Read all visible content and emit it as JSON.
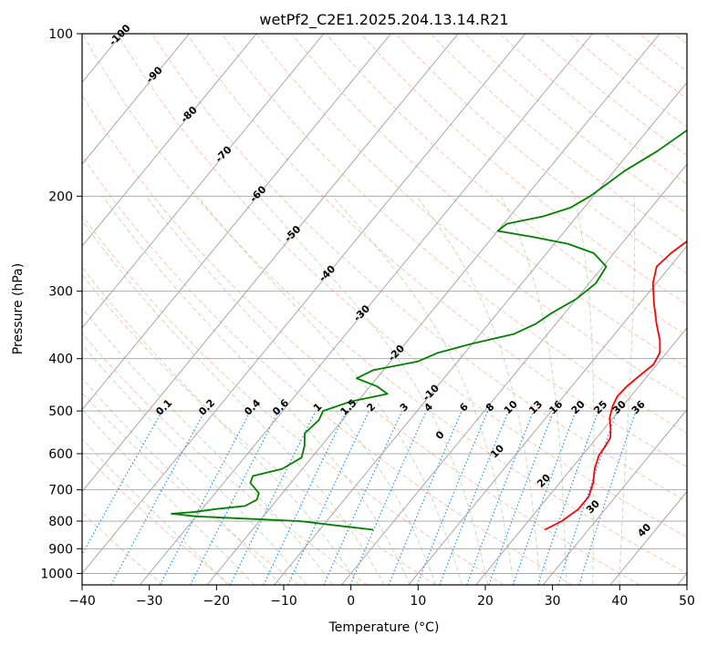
{
  "chart_data": {
    "type": "line",
    "subtype": "skew-t log-p diagram",
    "title": "wetPf2_C2E1.2025.204.13.14.R21",
    "xlabel": "Temperature (°C)",
    "ylabel": "Pressure (hPa)",
    "xlim": [
      -40,
      50
    ],
    "ylim": [
      1050,
      100
    ],
    "y_scale": "log",
    "grid": true,
    "x_ticks": [
      -40,
      -30,
      -20,
      -10,
      0,
      10,
      20,
      30,
      40,
      50
    ],
    "y_ticks": [
      100,
      200,
      300,
      400,
      500,
      600,
      700,
      800,
      900,
      1000
    ],
    "series": [
      {
        "color": "#ff0000",
        "points": [
          [
            23.5,
            830
          ],
          [
            25.0,
            800
          ],
          [
            26.0,
            760
          ],
          [
            26.0,
            720
          ],
          [
            25.0,
            680
          ],
          [
            23.5,
            640
          ],
          [
            22.5,
            605
          ],
          [
            22.3,
            580
          ],
          [
            22.0,
            560
          ],
          [
            21.0,
            540
          ],
          [
            19.5,
            515
          ],
          [
            18.5,
            490
          ],
          [
            18.0,
            470
          ],
          [
            18.2,
            450
          ],
          [
            18.8,
            430
          ],
          [
            19.5,
            410
          ],
          [
            19.0,
            390
          ],
          [
            17.5,
            370
          ],
          [
            15.0,
            345
          ],
          [
            12.0,
            315
          ],
          [
            9.5,
            290
          ],
          [
            8.0,
            270
          ],
          [
            8.5,
            255
          ],
          [
            10.0,
            235
          ],
          [
            9.5,
            215
          ],
          [
            7.5,
            195
          ],
          [
            5.0,
            175
          ],
          [
            2.5,
            155
          ],
          [
            0.5,
            140
          ],
          [
            -0.2,
            130
          ],
          [
            0.5,
            120
          ],
          [
            1.0,
            112
          ],
          [
            2.0,
            107
          ],
          [
            4.0,
            104
          ],
          [
            7.0,
            100
          ]
        ]
      },
      {
        "color": "#008000",
        "points": [
          [
            -2.0,
            830
          ],
          [
            -8.0,
            815
          ],
          [
            -14.0,
            800
          ],
          [
            -24.0,
            790
          ],
          [
            -30.0,
            784
          ],
          [
            -34.0,
            775
          ],
          [
            -31.0,
            770
          ],
          [
            -28.0,
            760
          ],
          [
            -24.0,
            750
          ],
          [
            -23.0,
            730
          ],
          [
            -23.5,
            710
          ],
          [
            -26.0,
            680
          ],
          [
            -26.5,
            660
          ],
          [
            -23.0,
            640
          ],
          [
            -21.5,
            610
          ],
          [
            -22.5,
            580
          ],
          [
            -24.0,
            550
          ],
          [
            -23.5,
            520
          ],
          [
            -24.0,
            500
          ],
          [
            -21.0,
            480
          ],
          [
            -16.5,
            465
          ],
          [
            -19.0,
            450
          ],
          [
            -23.0,
            435
          ],
          [
            -21.5,
            420
          ],
          [
            -16.0,
            405
          ],
          [
            -14.0,
            390
          ],
          [
            -10.0,
            375
          ],
          [
            -5.0,
            360
          ],
          [
            -3.0,
            345
          ],
          [
            -2.0,
            330
          ],
          [
            0.0,
            310
          ],
          [
            1.0,
            290
          ],
          [
            0.5,
            270
          ],
          [
            -3.0,
            255
          ],
          [
            -8.0,
            245
          ],
          [
            -14.0,
            238
          ],
          [
            -20.0,
            232
          ],
          [
            -19.5,
            225
          ],
          [
            -15.0,
            218
          ],
          [
            -12.0,
            210
          ],
          [
            -10.5,
            200
          ],
          [
            -9.5,
            190
          ],
          [
            -8.5,
            180
          ],
          [
            -6.0,
            165
          ],
          [
            -4.0,
            150
          ],
          [
            -2.5,
            135
          ],
          [
            -1.0,
            120
          ],
          [
            0.0,
            110
          ],
          [
            0.5,
            100
          ]
        ]
      }
    ],
    "mixing_ratio_labels": [
      "0.1",
      "0.2",
      "0.4",
      "0.6",
      "1",
      "1.5",
      "2",
      "3",
      "4",
      "6",
      "8",
      "10",
      "13",
      "16",
      "20",
      "25",
      "30",
      "36"
    ],
    "dry_adiabat_labels": [
      "-100",
      "-90",
      "-80",
      "-70",
      "-60",
      "-50",
      "-40",
      "-30",
      "-20",
      "-10"
    ],
    "moist_adiabat_labels": [
      "0",
      "10",
      "20",
      "30",
      "40"
    ],
    "colors": {
      "temperature": "#ff0000",
      "dewpoint": "#008000",
      "isotherm": "#a0a0a0",
      "dry_adiabat": "#ff8c69",
      "moist_adiabat": "#6fbf6f",
      "mixing_ratio": "#1e8fff",
      "dry_label": "#1f77b4",
      "moist_label": "#d62728"
    }
  }
}
